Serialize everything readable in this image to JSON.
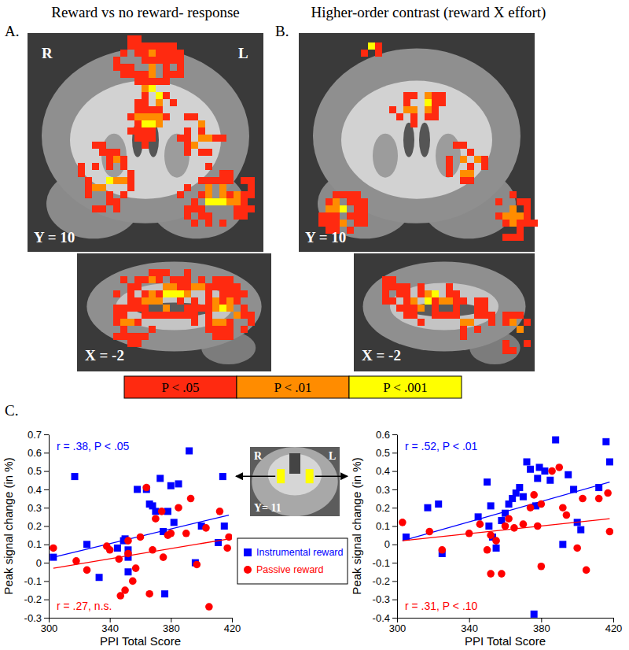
{
  "figure": {
    "panels": [
      {
        "label": "A.",
        "title": "Reward vs no reward- response",
        "hemisphere_labels": [
          "R",
          "L"
        ],
        "slices": [
          "Y = 10",
          "X = -2"
        ]
      },
      {
        "label": "B.",
        "title": "Higher-order contrast (reward X effort)",
        "slices": [
          "Y = 10",
          "X = -2"
        ]
      }
    ],
    "colorbar": {
      "labels": [
        "P < .05",
        "P < .01",
        "P < .001"
      ],
      "colors": [
        "#ff2a10",
        "#ff8c00",
        "#ffff00"
      ]
    },
    "panel_c": {
      "label": "C.",
      "inset": {
        "hemisphere_labels": [
          "R",
          "L"
        ],
        "slice": "Y= 11"
      }
    }
  },
  "chart_data": [
    {
      "type": "scatter",
      "x_label": "PPI Total Score",
      "y_label": "Peak signal change (in %)",
      "xlim": [
        300,
        420
      ],
      "xticks": [
        300,
        340,
        380,
        420
      ],
      "ylim": [
        -0.3,
        0.7
      ],
      "yticks": [
        -0.3,
        -0.2,
        -0.1,
        0,
        0.1,
        0.2,
        0.3,
        0.4,
        0.5,
        0.6,
        0.7
      ],
      "legend": "right",
      "series": [
        {
          "name": "Instrumental reward",
          "color": "#0000ff",
          "marker": "square",
          "annotation": "r = .38, P < .05",
          "x": [
            303,
            317,
            325,
            333,
            345,
            349,
            350,
            352,
            352,
            352,
            358,
            364,
            366,
            368,
            370,
            373,
            375,
            376,
            378,
            380,
            382,
            385,
            392,
            396,
            400,
            411,
            414,
            415
          ],
          "values": [
            0.03,
            0.47,
            0.1,
            -0.08,
            0.08,
            0.12,
            0.13,
            -0.05,
            0.07,
            0.03,
            0.4,
            0.4,
            0.32,
            0.31,
            0.28,
            0.46,
            0.17,
            -0.17,
            0.28,
            0.42,
            0.22,
            0.43,
            0.61,
            0.0,
            0.2,
            0.11,
            0.47,
            0.2
          ],
          "trend": {
            "x": [
              303,
              418
            ],
            "values": [
              0.03,
              0.26
            ]
          }
        },
        {
          "name": "Passive reward",
          "color": "#ff0000",
          "marker": "circle",
          "annotation": "r = .27, n.s.",
          "x": [
            303,
            318,
            325,
            338,
            340,
            346,
            347,
            350,
            352,
            352,
            355,
            357,
            360,
            364,
            366,
            368,
            370,
            374,
            375,
            378,
            380,
            385,
            390,
            393,
            397,
            403,
            405,
            412,
            417,
            418
          ],
          "values": [
            0.08,
            0.01,
            -0.04,
            0.09,
            0.07,
            0.02,
            -0.18,
            -0.15,
            0.05,
            0.12,
            -0.1,
            -0.03,
            0.14,
            0.41,
            -0.17,
            0.07,
            0.24,
            0.28,
            0.03,
            0.15,
            0.16,
            0.3,
            0.16,
            0.35,
            -0.01,
            0.19,
            -0.24,
            0.28,
            0.08,
            0.14
          ],
          "trend": {
            "x": [
              303,
              418
            ],
            "values": [
              -0.03,
              0.13
            ]
          }
        }
      ]
    },
    {
      "type": "scatter",
      "x_label": "PPI Total Score",
      "y_label": "Peak signal change (in %)",
      "xlim": [
        300,
        420
      ],
      "xticks": [
        300,
        340,
        380,
        420
      ],
      "ylim": [
        -0.4,
        0.6
      ],
      "yticks": [
        -0.4,
        -0.3,
        -0.2,
        -0.1,
        0,
        0.1,
        0.2,
        0.3,
        0.4,
        0.5,
        0.6
      ],
      "series": [
        {
          "color": "#0000ff",
          "marker": "square",
          "annotation": "r = .52, P < .01",
          "x": [
            305,
            317,
            323,
            325,
            345,
            350,
            351,
            352,
            353,
            355,
            358,
            360,
            362,
            364,
            366,
            368,
            370,
            372,
            374,
            376,
            377,
            378,
            379,
            382,
            385,
            388,
            392,
            395,
            398,
            400,
            402,
            412,
            416,
            418
          ],
          "values": [
            0.04,
            0.2,
            0.22,
            -0.05,
            0.15,
            0.34,
            0.1,
            0.21,
            0.04,
            -0.02,
            0.13,
            0.17,
            0.22,
            0.25,
            0.28,
            0.31,
            0.26,
            0.45,
            0.41,
            -0.38,
            0.21,
            0.36,
            0.42,
            0.4,
            0.35,
            0.57,
            0.0,
            0.38,
            0.3,
            0.12,
            0.08,
            0.31,
            0.56,
            0.45
          ],
          "trend": {
            "x": [
              303,
              418
            ],
            "values": [
              0.02,
              0.34
            ]
          }
        },
        {
          "color": "#ff0000",
          "marker": "circle",
          "annotation": "r = .31, P < .10",
          "x": [
            303,
            318,
            325,
            340,
            346,
            350,
            352,
            352,
            355,
            358,
            360,
            362,
            365,
            370,
            374,
            376,
            378,
            380,
            380,
            386,
            390,
            392,
            394,
            400,
            403,
            405,
            412,
            417,
            418
          ],
          "values": [
            0.12,
            0.07,
            -0.03,
            0.06,
            0.11,
            -0.03,
            0.05,
            -0.16,
            0.02,
            -0.16,
            0.1,
            0.14,
            0.09,
            0.11,
            0.2,
            0.27,
            0.1,
            -0.12,
            0.22,
            0.4,
            0.42,
            0.2,
            0.16,
            -0.02,
            0.25,
            -0.14,
            0.25,
            0.28,
            0.07
          ],
          "trend": {
            "x": [
              303,
              418
            ],
            "values": [
              0.02,
              0.14
            ]
          }
        }
      ]
    }
  ]
}
